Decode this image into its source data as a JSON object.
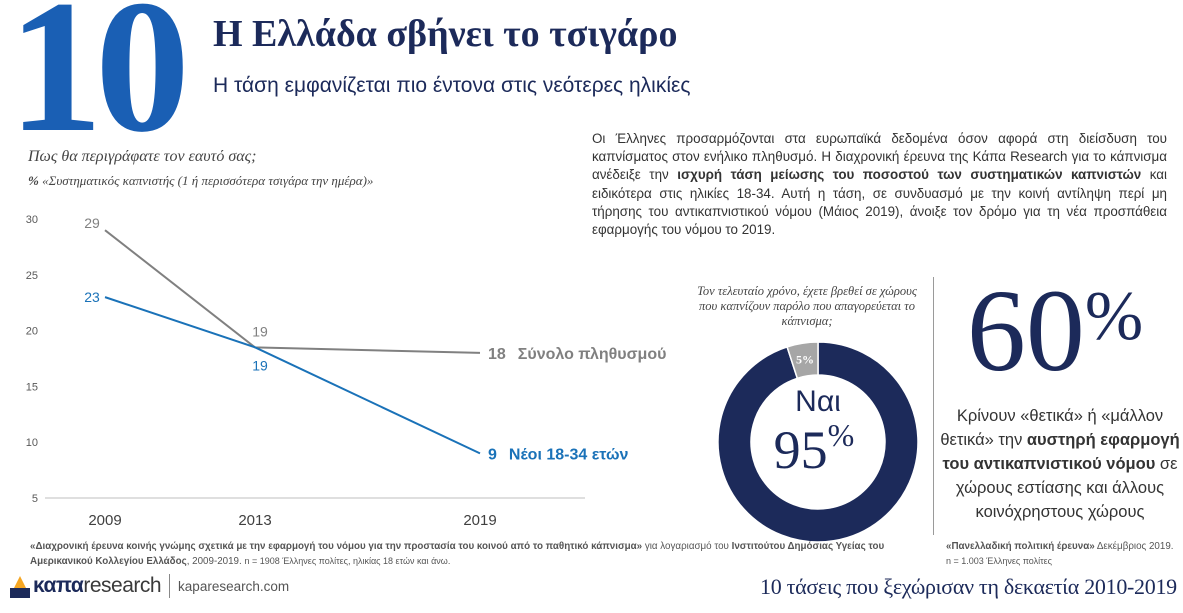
{
  "header": {
    "number": "10",
    "title": "Η Ελλάδα σβήνει το τσιγάρο",
    "subtitle": "Η τάση εμφανίζεται πιο έντονα στις νεότερες ηλικίες"
  },
  "chart_question": {
    "line1": "Πως θα περιγράφατε τον εαυτό σας;",
    "line2_bold": "%",
    "line2_rest": " «Συστηματικός καπνιστής (1 ή περισσότερα τσιγάρα την ημέρα)»"
  },
  "chart_data": [
    {
      "type": "line",
      "categories": [
        "2009",
        "2013",
        "2019"
      ],
      "x_positions": [
        2009,
        2013,
        2019
      ],
      "ylim": [
        5,
        30
      ],
      "yticks": [
        "5",
        "10",
        "15",
        "20",
        "25",
        "30"
      ],
      "series": [
        {
          "name": "Σύνολο πληθυσμού",
          "values": [
            29,
            18.5,
            18
          ],
          "labels": [
            "29",
            "19",
            ""
          ],
          "end_value_label": "18",
          "color": "#808080"
        },
        {
          "name": "Νέοι 18-34 ετών",
          "values": [
            23,
            18.5,
            9
          ],
          "labels": [
            "23",
            "19",
            ""
          ],
          "end_value_label": "9",
          "color": "#1a72b8"
        }
      ]
    },
    {
      "type": "pie",
      "question": "Τον τελευταίο χρόνο, έχετε βρεθεί σε χώρους που καπνίζουν παρόλο που απαγορεύεται το κάπνισμα;",
      "slices": [
        {
          "label": "Ναι",
          "value": 95,
          "display": "95",
          "color": "#1c2a5a"
        },
        {
          "label": "",
          "value": 5,
          "display": "5%",
          "color": "#a6a6a6"
        }
      ],
      "percent_sign": "%"
    }
  ],
  "description": {
    "p1": "Οι Έλληνες προσαρμόζονται στα ευρωπαϊκά δεδομένα όσον αφορά στη διείσδυση του καπνίσματος στον ενήλικο πληθυσμό. Η διαχρονική έρευνα της Κάπα Research για το κάπνισμα ανέδειξε την ",
    "bold": "ισχυρή τάση μείωσης του ποσοστού των συστηματικών καπνιστών",
    "p2": " και ειδικότερα στις ηλικίες 18-34. Αυτή η τάση, σε συνδυασμό με την κοινή αντίληψη περί μη τήρησης του αντικαπνιστικού νόμου (Μάιος 2019), άνοιξε τον δρόμο για τη νέα προσπάθεια εφαρμογής του νόμου το 2019."
  },
  "stat_60": {
    "value": "60",
    "sign": "%",
    "text1": "Κρίνουν «θετικά» ή «μάλλον θετικά» την ",
    "bold": "αυστηρή εφαρμογή του αντικαπνιστικού νόμου",
    "text2": " σε χώρους εστίασης και άλλους κοινόχρηστους χώρους"
  },
  "sources": {
    "left_bold": "«Διαχρονική έρευνα κοινής γνώμης σχετικά με την εφαρμογή του νόμου για την προστασία του κοινού από το παθητικό κάπνισμα»",
    "left_mid": " για λογαριασμό του ",
    "left_bold2": "Ινστιτούτου Δημόσιας Υγείας του Αμερικανικού Κολλεγίου Ελλάδος",
    "left_tail": ", 2009-2019. ",
    "left_note": "n = 1908 Έλληνες πολίτες, ηλικίας 18 ετών και άνω.",
    "right_bold": "«Πανελλαδική πολιτική έρευνα»",
    "right_tail": " Δεκέμβριος 2019. ",
    "right_note": "n = 1.003 Έλληνες πολίτες"
  },
  "footer": {
    "logo_k": "κ",
    "logo_apa": "απα",
    "logo_research": "research",
    "url": "kaparesearch.com",
    "decade_title": "10 τάσεις που ξεχώρισαν τη δεκαετία 2010-2019"
  },
  "colors": {
    "title_navy": "#1c2a5a",
    "number_blue": "#1a5fb4",
    "total_gray": "#808080",
    "youth_blue": "#1a72b8",
    "donut_navy": "#1c2a5a",
    "donut_gray": "#a6a6a6"
  }
}
